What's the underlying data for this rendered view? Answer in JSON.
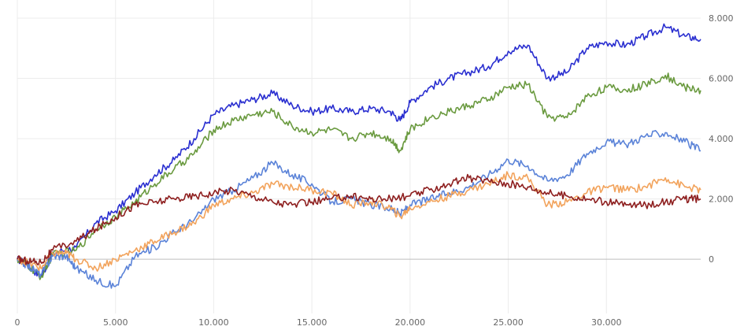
{
  "chart_data": {
    "type": "line",
    "title": "",
    "xlabel": "",
    "ylabel": "",
    "xlim": [
      0,
      34800
    ],
    "ylim": [
      -1800,
      8600
    ],
    "grid": true,
    "y_axis_side": "right",
    "x_ticks": [
      {
        "value": 0,
        "label": "0"
      },
      {
        "value": 5000,
        "label": "5.000"
      },
      {
        "value": 10000,
        "label": "10.000"
      },
      {
        "value": 15000,
        "label": "15.000"
      },
      {
        "value": 20000,
        "label": "20.000"
      },
      {
        "value": 25000,
        "label": "25.000"
      },
      {
        "value": 30000,
        "label": "30.000"
      }
    ],
    "y_ticks": [
      {
        "value": 0,
        "label": "0"
      },
      {
        "value": 2000,
        "label": "2.000"
      },
      {
        "value": 4000,
        "label": "4.000"
      },
      {
        "value": 6000,
        "label": "6.000"
      },
      {
        "value": 8000,
        "label": "8.000"
      }
    ],
    "series": [
      {
        "color": "#2a2fd0",
        "points": [
          [
            0,
            0
          ],
          [
            500,
            -150
          ],
          [
            1200,
            -600
          ],
          [
            1800,
            200
          ],
          [
            3000,
            400
          ],
          [
            4000,
            1200
          ],
          [
            5000,
            1600
          ],
          [
            6000,
            2200
          ],
          [
            7000,
            2800
          ],
          [
            8000,
            3300
          ],
          [
            9000,
            4000
          ],
          [
            10000,
            4800
          ],
          [
            11000,
            5100
          ],
          [
            12000,
            5300
          ],
          [
            13000,
            5500
          ],
          [
            14000,
            5100
          ],
          [
            15000,
            4900
          ],
          [
            16000,
            5000
          ],
          [
            17000,
            4900
          ],
          [
            18000,
            5000
          ],
          [
            19000,
            4900
          ],
          [
            19500,
            4600
          ],
          [
            20000,
            5200
          ],
          [
            21000,
            5700
          ],
          [
            22000,
            6000
          ],
          [
            23000,
            6200
          ],
          [
            24000,
            6400
          ],
          [
            25000,
            6900
          ],
          [
            26000,
            7100
          ],
          [
            27000,
            6000
          ],
          [
            28000,
            6200
          ],
          [
            29000,
            7000
          ],
          [
            30000,
            7200
          ],
          [
            31000,
            7100
          ],
          [
            32000,
            7400
          ],
          [
            33000,
            7700
          ],
          [
            34000,
            7400
          ],
          [
            34800,
            7300
          ]
        ]
      },
      {
        "color": "#6a9a3f",
        "points": [
          [
            0,
            0
          ],
          [
            500,
            -200
          ],
          [
            1200,
            -600
          ],
          [
            1800,
            150
          ],
          [
            3000,
            300
          ],
          [
            4000,
            1000
          ],
          [
            5000,
            1400
          ],
          [
            6000,
            1900
          ],
          [
            7000,
            2500
          ],
          [
            8000,
            3000
          ],
          [
            9000,
            3500
          ],
          [
            10000,
            4300
          ],
          [
            11000,
            4600
          ],
          [
            12000,
            4800
          ],
          [
            13000,
            4900
          ],
          [
            14000,
            4400
          ],
          [
            15000,
            4200
          ],
          [
            16000,
            4300
          ],
          [
            17000,
            4000
          ],
          [
            18000,
            4200
          ],
          [
            19000,
            4000
          ],
          [
            19500,
            3600
          ],
          [
            20000,
            4300
          ],
          [
            21000,
            4700
          ],
          [
            22000,
            4900
          ],
          [
            23000,
            5100
          ],
          [
            24000,
            5300
          ],
          [
            25000,
            5700
          ],
          [
            26000,
            5800
          ],
          [
            27000,
            4700
          ],
          [
            28000,
            4700
          ],
          [
            29000,
            5400
          ],
          [
            30000,
            5700
          ],
          [
            31000,
            5600
          ],
          [
            32000,
            5800
          ],
          [
            33000,
            6100
          ],
          [
            34000,
            5700
          ],
          [
            34800,
            5600
          ]
        ]
      },
      {
        "color": "#5b83d8",
        "points": [
          [
            0,
            0
          ],
          [
            500,
            -200
          ],
          [
            1200,
            -500
          ],
          [
            1800,
            100
          ],
          [
            2500,
            100
          ],
          [
            3000,
            -300
          ],
          [
            4000,
            -700
          ],
          [
            5000,
            -900
          ],
          [
            6000,
            100
          ],
          [
            7000,
            400
          ],
          [
            8000,
            900
          ],
          [
            9000,
            1300
          ],
          [
            10000,
            2000
          ],
          [
            11000,
            2300
          ],
          [
            12000,
            2700
          ],
          [
            13000,
            3200
          ],
          [
            14000,
            2800
          ],
          [
            15000,
            2500
          ],
          [
            16000,
            1900
          ],
          [
            17000,
            2000
          ],
          [
            18000,
            1800
          ],
          [
            19000,
            1700
          ],
          [
            19500,
            1500
          ],
          [
            20000,
            1800
          ],
          [
            21000,
            2000
          ],
          [
            22000,
            2200
          ],
          [
            23000,
            2400
          ],
          [
            24000,
            2800
          ],
          [
            25000,
            3300
          ],
          [
            26000,
            3100
          ],
          [
            27000,
            2600
          ],
          [
            28000,
            2800
          ],
          [
            29000,
            3500
          ],
          [
            30000,
            3900
          ],
          [
            31000,
            3800
          ],
          [
            32000,
            4100
          ],
          [
            33000,
            4200
          ],
          [
            34000,
            3900
          ],
          [
            34800,
            3600
          ]
        ]
      },
      {
        "color": "#f2a35c",
        "points": [
          [
            0,
            0
          ],
          [
            500,
            -100
          ],
          [
            1200,
            -300
          ],
          [
            1800,
            200
          ],
          [
            2500,
            200
          ],
          [
            3000,
            0
          ],
          [
            4000,
            -300
          ],
          [
            5000,
            0
          ],
          [
            6000,
            300
          ],
          [
            7000,
            600
          ],
          [
            8000,
            900
          ],
          [
            9000,
            1200
          ],
          [
            10000,
            1800
          ],
          [
            11000,
            2000
          ],
          [
            12000,
            2200
          ],
          [
            13000,
            2500
          ],
          [
            14000,
            2400
          ],
          [
            15000,
            2300
          ],
          [
            16000,
            2200
          ],
          [
            17000,
            1800
          ],
          [
            18000,
            1900
          ],
          [
            19000,
            1700
          ],
          [
            19500,
            1400
          ],
          [
            20000,
            1700
          ],
          [
            21000,
            1900
          ],
          [
            22000,
            2100
          ],
          [
            23000,
            2300
          ],
          [
            24000,
            2500
          ],
          [
            25000,
            2800
          ],
          [
            26000,
            2700
          ],
          [
            27000,
            1800
          ],
          [
            28000,
            1900
          ],
          [
            29000,
            2200
          ],
          [
            30000,
            2400
          ],
          [
            31000,
            2300
          ],
          [
            32000,
            2400
          ],
          [
            33000,
            2700
          ],
          [
            34000,
            2400
          ],
          [
            34800,
            2300
          ]
        ]
      },
      {
        "color": "#8e1f1f",
        "points": [
          [
            0,
            0
          ],
          [
            500,
            -50
          ],
          [
            1200,
            -100
          ],
          [
            1800,
            300
          ],
          [
            3000,
            600
          ],
          [
            4000,
            1000
          ],
          [
            5000,
            1400
          ],
          [
            6000,
            1800
          ],
          [
            7000,
            1900
          ],
          [
            8000,
            2000
          ],
          [
            9000,
            2100
          ],
          [
            10000,
            2200
          ],
          [
            11000,
            2300
          ],
          [
            12000,
            2100
          ],
          [
            13000,
            1900
          ],
          [
            14000,
            1800
          ],
          [
            15000,
            1900
          ],
          [
            16000,
            2000
          ],
          [
            17000,
            2100
          ],
          [
            18000,
            2000
          ],
          [
            19000,
            2000
          ],
          [
            20000,
            2100
          ],
          [
            21000,
            2300
          ],
          [
            22000,
            2500
          ],
          [
            23000,
            2700
          ],
          [
            24000,
            2600
          ],
          [
            25000,
            2500
          ],
          [
            26000,
            2400
          ],
          [
            27000,
            2200
          ],
          [
            28000,
            2100
          ],
          [
            29000,
            2000
          ],
          [
            30000,
            1900
          ],
          [
            31000,
            1800
          ],
          [
            32000,
            1800
          ],
          [
            33000,
            1900
          ],
          [
            34000,
            2000
          ],
          [
            34800,
            2000
          ]
        ]
      }
    ]
  }
}
